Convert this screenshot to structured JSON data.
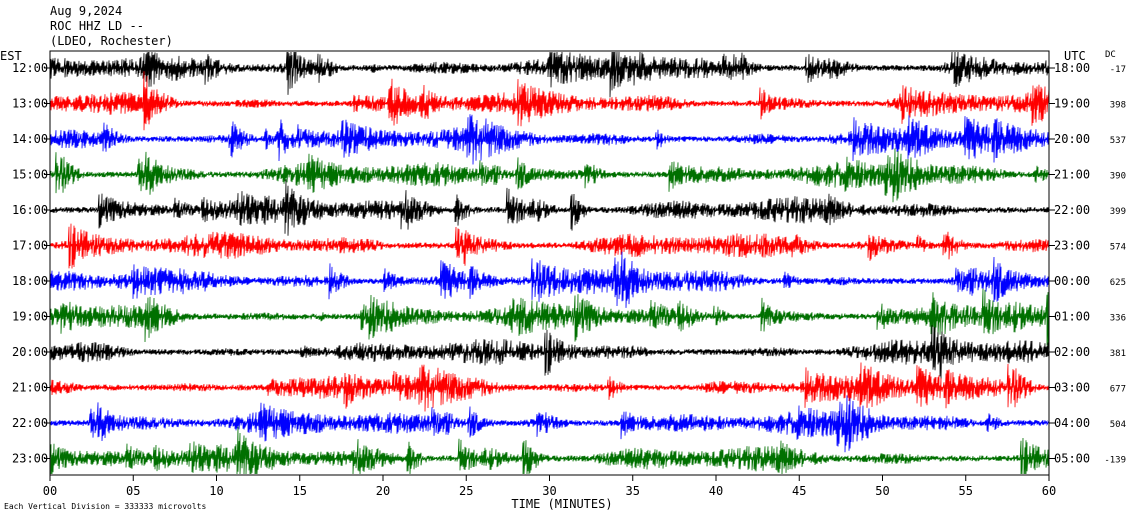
{
  "header": {
    "date": "Aug 9,2024",
    "station": "ROC HHZ LD --",
    "location": "(LDEO, Rochester)"
  },
  "chart_data": {
    "type": "line",
    "title": "",
    "xlabel": "TIME (MINUTES)",
    "left_axis_label": "EST",
    "right_axis_label": "UTC",
    "dc_header": "DC",
    "xlim": [
      0,
      60
    ],
    "x_ticks": [
      "00",
      "05",
      "10",
      "15",
      "20",
      "25",
      "30",
      "35",
      "40",
      "45",
      "50",
      "55",
      "60"
    ],
    "x_tick_values": [
      0,
      5,
      10,
      15,
      20,
      25,
      30,
      35,
      40,
      45,
      50,
      55,
      60
    ],
    "trace_colors": [
      "#000000",
      "#ff0000",
      "#0000ff",
      "#007000"
    ],
    "rows": [
      {
        "est": "12:00",
        "utc": "18:00",
        "dc": "-17"
      },
      {
        "est": "13:00",
        "utc": "19:00",
        "dc": "398"
      },
      {
        "est": "14:00",
        "utc": "20:00",
        "dc": "537"
      },
      {
        "est": "15:00",
        "utc": "21:00",
        "dc": "390"
      },
      {
        "est": "16:00",
        "utc": "22:00",
        "dc": "399"
      },
      {
        "est": "17:00",
        "utc": "23:00",
        "dc": "574"
      },
      {
        "est": "18:00",
        "utc": "00:00",
        "dc": "625"
      },
      {
        "est": "19:00",
        "utc": "01:00",
        "dc": "336"
      },
      {
        "est": "20:00",
        "utc": "02:00",
        "dc": "381"
      },
      {
        "est": "21:00",
        "utc": "03:00",
        "dc": "677"
      },
      {
        "est": "22:00",
        "utc": "04:00",
        "dc": "504"
      },
      {
        "est": "23:00",
        "utc": "05:00",
        "dc": "-139"
      }
    ],
    "scale_note": "Each Vertical Division =  333333 microvolts"
  }
}
